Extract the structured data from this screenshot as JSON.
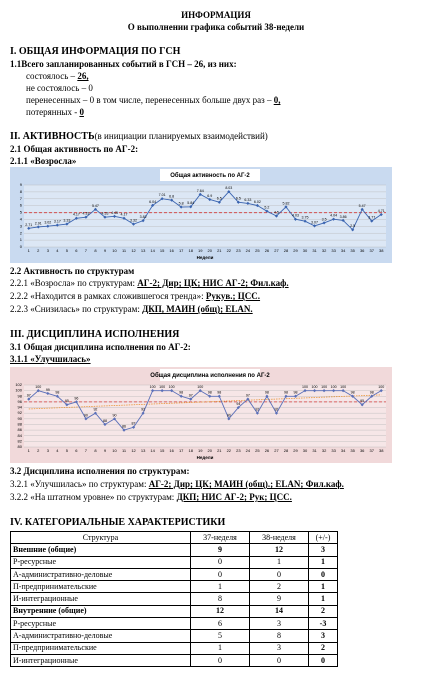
{
  "header": {
    "title": "ИНФОРМАЦИЯ",
    "subtitle": "О выполнении графика событий 38-недели"
  },
  "section1": {
    "heading": "I. ОБЩАЯ ИНФОРМАЦИЯ ПО ГСН",
    "lead": "1.1Всего запланированных событий в ГСН – 26, из них:",
    "items": [
      {
        "text": "состоялось  – ",
        "value": "26,"
      },
      {
        "text": "не состоялось – 0"
      },
      {
        "text": "перенесенных – 0 в том числе, перенесенных больше двух раз – ",
        "value": "0,"
      },
      {
        "text": "потерянных - ",
        "value": "0"
      }
    ]
  },
  "section2": {
    "heading": "II. АКТИВНОСТЬ",
    "heading_note": "(в инициации планируемых взаимодействий)",
    "sub1": "2.1 Общая активность по АГ-2:",
    "sub11": "2.1.1 «Возросла»",
    "sub2": "2.2 Активность по структурам",
    "lines": [
      {
        "text": "2.2.1 «Возросла» по структурам: ",
        "value": "АГ-2; Дир; ЦК; НИС АГ-2; Фил.каф."
      },
      {
        "text": "2.2.2 «Находится в рамках сложившегося тренда»: ",
        "value": "Рукув.; ЦСС."
      },
      {
        "text": "2.2.3 «Снизилась» по структурам: ",
        "value": "ДКП, МАИН (общ); ELAN."
      }
    ]
  },
  "section3": {
    "heading": "III. ДИСЦИПЛИНА ИСПОЛНЕНИЯ",
    "sub1": "3.1 Общая дисциплина исполнения по АГ-2:",
    "sub11": "3.1.1 «Улучшилась»",
    "sub2": "3.2 Дисциплина исполнения по структурам:",
    "lines": [
      {
        "text": "3.2.1 «Улучшилась» по структурам: ",
        "value": "АГ-2; Дир; ЦК; МАИН (общ).; ELAN; Фил.каф."
      },
      {
        "text": "3.2.2 «На штатном уровне» по структурам: ",
        "value": "ДКП; НИС АГ-2; Рук; ЦСС."
      }
    ]
  },
  "charts": [
    {
      "type": "line",
      "title": "Общая активность по АГ-2",
      "x_label": "Недели",
      "categories": [
        1,
        2,
        3,
        4,
        5,
        6,
        7,
        8,
        9,
        10,
        11,
        12,
        13,
        14,
        15,
        16,
        17,
        18,
        19,
        20,
        21,
        22,
        23,
        24,
        25,
        26,
        27,
        28,
        29,
        30,
        31,
        32,
        33,
        34,
        35,
        36,
        37,
        38
      ],
      "values": [
        2.71,
        2.91,
        3.02,
        3.17,
        3.33,
        4.17,
        4.33,
        5.47,
        4.33,
        4.45,
        4.17,
        3.32,
        3.82,
        6.04,
        7.01,
        6.8,
        5.8,
        5.84,
        7.64,
        6.9,
        6.5,
        8.03,
        6.5,
        6.33,
        6.02,
        5.2,
        4.5,
        5.82,
        4.03,
        3.75,
        3.07,
        3.5,
        4.04,
        3.86,
        2.5,
        5.47,
        3.77,
        4.71
      ],
      "color": "#3a64b0",
      "background": "#c9daf0",
      "mean_line": 4.98,
      "mean_color": "#d23b3b",
      "ylim": [
        0,
        9
      ],
      "yticks": [
        0,
        1,
        2,
        3,
        4,
        5,
        6,
        7,
        8,
        9
      ],
      "grid": true
    },
    {
      "type": "line",
      "title": "Общая дисциплина исполнения по АГ-2",
      "x_label": "Недели",
      "categories": [
        1,
        2,
        3,
        4,
        5,
        6,
        7,
        8,
        9,
        10,
        11,
        12,
        13,
        14,
        15,
        16,
        17,
        18,
        19,
        20,
        21,
        22,
        23,
        24,
        25,
        26,
        27,
        28,
        29,
        30,
        31,
        32,
        33,
        34,
        35,
        36,
        37,
        38
      ],
      "values": [
        97,
        100,
        99,
        98,
        95,
        96,
        90,
        92,
        88,
        90,
        86,
        87,
        92,
        100,
        100,
        100,
        98,
        97,
        100,
        98,
        98,
        90,
        94,
        97,
        92,
        98,
        92,
        98,
        98,
        100,
        100,
        100,
        100,
        100,
        98,
        95,
        98,
        100
      ],
      "color": "#5a6fb8",
      "background": "#f1d9da",
      "mean_line": 96,
      "mean_color": "#d23b3b",
      "trend": [
        93.5,
        98.5
      ],
      "trend_color": "#e8953a",
      "ylim": [
        80,
        102
      ],
      "yticks": [
        80,
        82,
        84,
        86,
        88,
        90,
        92,
        94,
        96,
        98,
        100,
        102
      ],
      "grid": true
    }
  ],
  "section4": {
    "heading": "IV. КАТЕГОРИАЛЬНЫЕ ХАРАКТЕРИСТИКИ",
    "table": {
      "columns": [
        "Структура",
        "37-неделя",
        "38-неделя",
        "(+/-)"
      ],
      "rows": [
        {
          "cells": [
            "Внешние (общие)",
            9,
            12,
            3
          ],
          "group": true
        },
        {
          "cells": [
            "Р-ресурсные",
            0,
            1,
            1
          ]
        },
        {
          "cells": [
            "А-административно-деловые",
            0,
            0,
            0
          ]
        },
        {
          "cells": [
            "П-предпринимательские",
            1,
            2,
            1
          ]
        },
        {
          "cells": [
            "И-интеграционные",
            8,
            9,
            1
          ]
        },
        {
          "cells": [
            "Внутренние (общие)",
            12,
            14,
            2
          ],
          "group": true
        },
        {
          "cells": [
            "Р-ресурсные",
            6,
            3,
            -3
          ]
        },
        {
          "cells": [
            "А-административно-деловые",
            5,
            8,
            3
          ]
        },
        {
          "cells": [
            "П-предпринимательские",
            1,
            3,
            2
          ]
        },
        {
          "cells": [
            "И-интеграционные",
            0,
            0,
            0
          ]
        }
      ]
    }
  }
}
